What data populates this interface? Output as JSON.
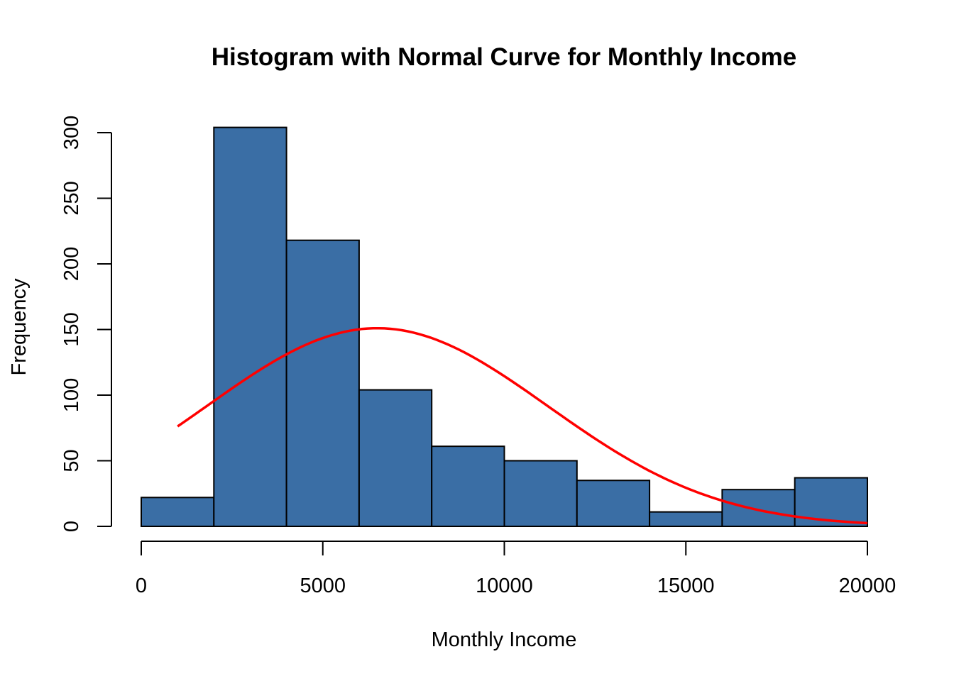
{
  "chart_data": {
    "type": "bar",
    "title": "Histogram with Normal Curve for Monthly Income",
    "xlabel": "Monthly Income",
    "ylabel": "Frequency",
    "xlim": [
      0,
      20000
    ],
    "ylim": [
      0,
      300
    ],
    "x_ticks": [
      0,
      5000,
      10000,
      15000,
      20000
    ],
    "y_ticks": [
      0,
      50,
      100,
      150,
      200,
      250,
      300
    ],
    "bins": [
      {
        "start": 0,
        "end": 2000,
        "count": 22
      },
      {
        "start": 2000,
        "end": 4000,
        "count": 304
      },
      {
        "start": 4000,
        "end": 6000,
        "count": 218
      },
      {
        "start": 6000,
        "end": 8000,
        "count": 104
      },
      {
        "start": 8000,
        "end": 10000,
        "count": 61
      },
      {
        "start": 10000,
        "end": 12000,
        "count": 50
      },
      {
        "start": 12000,
        "end": 14000,
        "count": 35
      },
      {
        "start": 14000,
        "end": 16000,
        "count": 11
      },
      {
        "start": 16000,
        "end": 18000,
        "count": 28
      },
      {
        "start": 18000,
        "end": 20000,
        "count": 37
      }
    ],
    "normal_curve": {
      "mean": 6500,
      "sd": 4700,
      "peak": 151,
      "x_range": [
        1000,
        20000
      ]
    },
    "grid": false,
    "legend": "none"
  },
  "colors": {
    "bar_fill": "#3A6EA5",
    "bar_stroke": "#000000",
    "curve": "#FF0000"
  }
}
